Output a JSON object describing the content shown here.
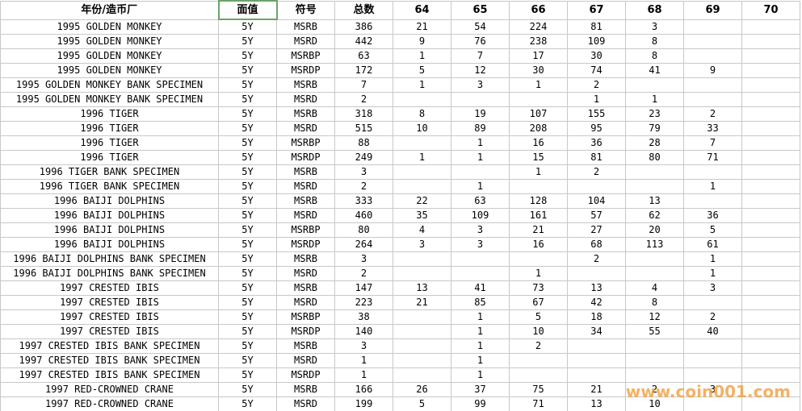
{
  "table": {
    "header": [
      "年份/造币厂",
      "面值",
      "符号",
      "总数",
      "64",
      "65",
      "66",
      "67",
      "68",
      "69",
      "70"
    ],
    "rows": [
      [
        "1995 GOLDEN MONKEY",
        "5Y",
        "MSRB",
        386,
        21,
        54,
        224,
        81,
        3,
        null,
        null
      ],
      [
        "1995 GOLDEN MONKEY",
        "5Y",
        "MSRD",
        442,
        9,
        76,
        238,
        109,
        8,
        null,
        null
      ],
      [
        "1995 GOLDEN MONKEY",
        "5Y",
        "MSRBP",
        63,
        1,
        7,
        17,
        30,
        8,
        null,
        null
      ],
      [
        "1995 GOLDEN MONKEY",
        "5Y",
        "MSRDP",
        172,
        5,
        12,
        30,
        74,
        41,
        9,
        null
      ],
      [
        "1995 GOLDEN MONKEY BANK SPECIMEN",
        "5Y",
        "MSRB",
        7,
        1,
        3,
        1,
        2,
        null,
        null,
        null
      ],
      [
        "1995 GOLDEN MONKEY BANK SPECIMEN",
        "5Y",
        "MSRD",
        2,
        null,
        null,
        null,
        1,
        1,
        null,
        null
      ],
      [
        "1996 TIGER",
        "5Y",
        "MSRB",
        318,
        8,
        19,
        107,
        155,
        23,
        2,
        null
      ],
      [
        "1996 TIGER",
        "5Y",
        "MSRD",
        515,
        10,
        89,
        208,
        95,
        79,
        33,
        null
      ],
      [
        "1996 TIGER",
        "5Y",
        "MSRBP",
        88,
        null,
        1,
        16,
        36,
        28,
        7,
        null
      ],
      [
        "1996 TIGER",
        "5Y",
        "MSRDP",
        249,
        1,
        1,
        15,
        81,
        80,
        71,
        null
      ],
      [
        "1996 TIGER BANK SPECIMEN",
        "5Y",
        "MSRB",
        3,
        null,
        null,
        1,
        2,
        null,
        null,
        null
      ],
      [
        "1996 TIGER BANK SPECIMEN",
        "5Y",
        "MSRD",
        2,
        null,
        1,
        null,
        null,
        null,
        1,
        null
      ],
      [
        "1996 BAIJI DOLPHINS",
        "5Y",
        "MSRB",
        333,
        22,
        63,
        128,
        104,
        13,
        null,
        null
      ],
      [
        "1996 BAIJI DOLPHINS",
        "5Y",
        "MSRD",
        460,
        35,
        109,
        161,
        57,
        62,
        36,
        null
      ],
      [
        "1996 BAIJI DOLPHINS",
        "5Y",
        "MSRBP",
        80,
        4,
        3,
        21,
        27,
        20,
        5,
        null
      ],
      [
        "1996 BAIJI DOLPHINS",
        "5Y",
        "MSRDP",
        264,
        3,
        3,
        16,
        68,
        113,
        61,
        null
      ],
      [
        "1996 BAIJI DOLPHINS BANK SPECIMEN",
        "5Y",
        "MSRB",
        3,
        null,
        null,
        null,
        2,
        null,
        1,
        null
      ],
      [
        "1996 BAIJI DOLPHINS BANK SPECIMEN",
        "5Y",
        "MSRD",
        2,
        null,
        null,
        1,
        null,
        null,
        1,
        null
      ],
      [
        "1997 CRESTED IBIS",
        "5Y",
        "MSRB",
        147,
        13,
        41,
        73,
        13,
        4,
        3,
        null
      ],
      [
        "1997 CRESTED IBIS",
        "5Y",
        "MSRD",
        223,
        21,
        85,
        67,
        42,
        8,
        null,
        null
      ],
      [
        "1997 CRESTED IBIS",
        "5Y",
        "MSRBP",
        38,
        null,
        1,
        5,
        18,
        12,
        2,
        null
      ],
      [
        "1997 CRESTED IBIS",
        "5Y",
        "MSRDP",
        140,
        null,
        1,
        10,
        34,
        55,
        40,
        null
      ],
      [
        "1997 CRESTED IBIS BANK SPECIMEN",
        "5Y",
        "MSRB",
        3,
        null,
        1,
        2,
        null,
        null,
        null,
        null
      ],
      [
        "1997 CRESTED IBIS BANK SPECIMEN",
        "5Y",
        "MSRD",
        1,
        null,
        1,
        null,
        null,
        null,
        null,
        null
      ],
      [
        "1997 CRESTED IBIS BANK SPECIMEN",
        "5Y",
        "MSRDP",
        1,
        null,
        1,
        null,
        null,
        null,
        null,
        null
      ],
      [
        "1997 RED-CROWNED CRANE",
        "5Y",
        "MSRB",
        166,
        26,
        37,
        75,
        21,
        2,
        3,
        null
      ],
      [
        "1997 RED-CROWNED CRANE",
        "5Y",
        "MSRD",
        199,
        5,
        99,
        71,
        13,
        10,
        null,
        null
      ]
    ]
  },
  "watermark": "www.coin001.com"
}
